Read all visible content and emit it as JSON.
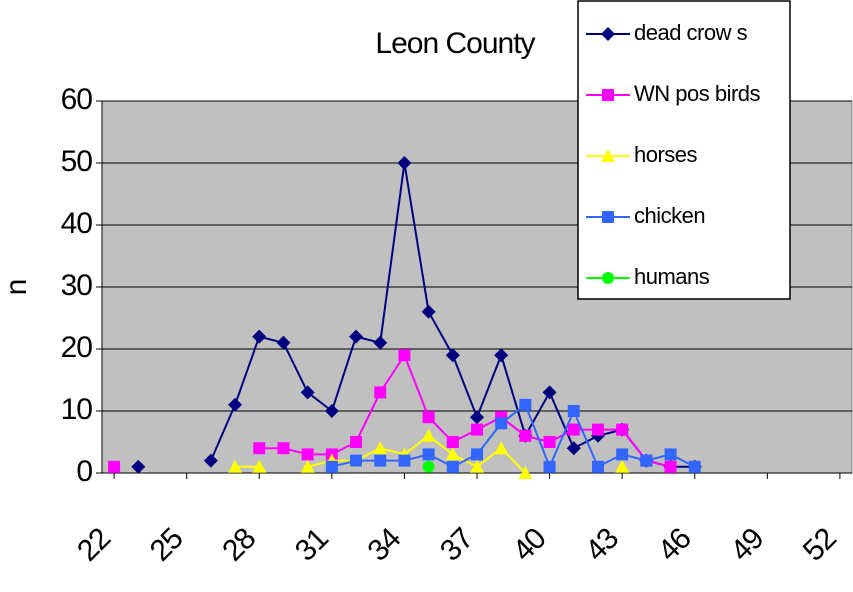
{
  "chart_data": {
    "type": "line",
    "title": "Leon County",
    "y_label": "n",
    "x": [
      22,
      23,
      24,
      25,
      26,
      27,
      28,
      29,
      30,
      31,
      32,
      33,
      34,
      35,
      36,
      37,
      38,
      39,
      40,
      41,
      42,
      43,
      44,
      45,
      46,
      47,
      48,
      49,
      50,
      51,
      52
    ],
    "xlim": [
      21.5,
      52.5
    ],
    "xticks": [
      22,
      25,
      28,
      31,
      34,
      37,
      40,
      43,
      46,
      49,
      52
    ],
    "ylim": [
      0,
      60
    ],
    "yticks": [
      0,
      10,
      20,
      30,
      40,
      50,
      60
    ],
    "grid": true,
    "legend": "top-right",
    "series": [
      {
        "name": "dead crow s",
        "color": "#000080",
        "marker": "diamond",
        "values": [
          null,
          1,
          null,
          null,
          2,
          11,
          22,
          21,
          13,
          10,
          22,
          21,
          50,
          26,
          19,
          9,
          19,
          6,
          13,
          4,
          6,
          7,
          2,
          1,
          1,
          null,
          null,
          null,
          null,
          null,
          null
        ]
      },
      {
        "name": "WN pos birds",
        "color": "#ff00ff",
        "marker": "square",
        "values": [
          1,
          null,
          null,
          null,
          null,
          null,
          4,
          4,
          3,
          3,
          5,
          13,
          19,
          9,
          5,
          7,
          9,
          6,
          5,
          7,
          7,
          7,
          2,
          1,
          null,
          null,
          null,
          null,
          null,
          null,
          null
        ]
      },
      {
        "name": "horses",
        "color": "#ffff00",
        "marker": "triangle",
        "values": [
          null,
          null,
          null,
          null,
          null,
          1,
          1,
          null,
          1,
          2,
          2,
          4,
          3,
          6,
          3,
          1,
          4,
          0,
          null,
          null,
          null,
          1,
          null,
          null,
          null,
          null,
          null,
          null,
          null,
          null,
          null
        ]
      },
      {
        "name": "chicken",
        "color": "#3366ff",
        "marker": "square",
        "values": [
          null,
          null,
          null,
          null,
          null,
          null,
          null,
          null,
          null,
          1,
          2,
          2,
          2,
          3,
          1,
          3,
          8,
          11,
          1,
          10,
          1,
          3,
          2,
          3,
          1,
          null,
          null,
          null,
          null,
          null,
          null
        ]
      },
      {
        "name": "humans",
        "color": "#00ff00",
        "marker": "circle",
        "values": [
          null,
          null,
          null,
          null,
          null,
          null,
          null,
          null,
          null,
          null,
          null,
          null,
          null,
          1,
          null,
          null,
          null,
          null,
          null,
          null,
          null,
          null,
          null,
          null,
          null,
          null,
          null,
          null,
          null,
          null,
          null
        ]
      }
    ]
  }
}
